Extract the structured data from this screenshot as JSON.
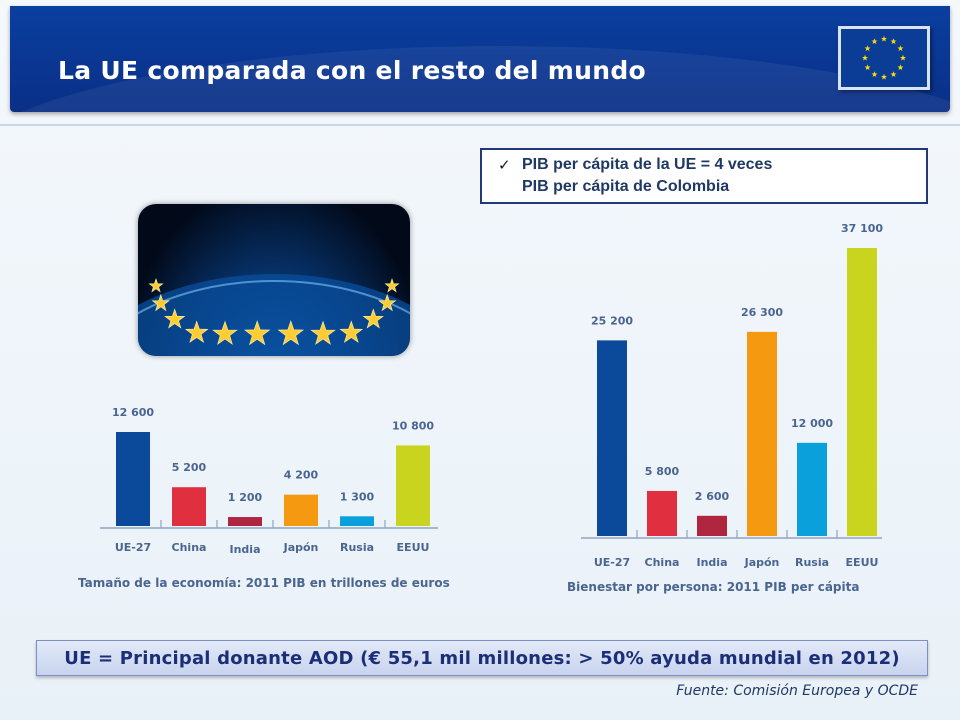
{
  "header": {
    "title": "La UE comparada con el resto del mundo"
  },
  "callout": {
    "check_icon": "check-icon",
    "line1": "PIB per cápita de la UE =  4 veces",
    "line2": "PIB per cápita de Colombia"
  },
  "chart_data": [
    {
      "type": "bar",
      "title": "Tamaño de la economía: 2011 PIB en trillones de euros",
      "categories": [
        "UE-27",
        "China",
        "India",
        "Japón",
        "Rusia",
        "EEUU"
      ],
      "values": [
        12600,
        5200,
        1200,
        4200,
        1300,
        10800
      ],
      "value_labels": [
        "12 600",
        "5 200",
        "1 200",
        "4 200",
        "1 300",
        "10 800"
      ],
      "colors": [
        "#0b4a9a",
        "#e03040",
        "#b0263f",
        "#f59a10",
        "#0aa0dc",
        "#c8d41e"
      ],
      "grid": false,
      "legend": "none"
    },
    {
      "type": "bar",
      "title": "Bienestar por persona: 2011 PIB per cápita",
      "categories": [
        "UE-27",
        "China",
        "India",
        "Japón",
        "Rusia",
        "EEUU"
      ],
      "values": [
        25200,
        5800,
        2600,
        26300,
        12000,
        37100
      ],
      "value_labels": [
        "25 200",
        "5 800",
        "2 600",
        "26 300",
        "12 000",
        "37 100"
      ],
      "colors": [
        "#0b4a9a",
        "#e03040",
        "#b0263f",
        "#f59a10",
        "#0aa0dc",
        "#c8d41e"
      ],
      "grid": false,
      "legend": "none"
    }
  ],
  "footer": {
    "banner": "UE = Principal donante AOD (€ 55,1 mil millones: > 50% ayuda mundial en 2012)",
    "source": "Fuente: Comisión Europea y OCDE"
  },
  "icons": {
    "flag": "eu-flag-icon",
    "photo": "eu-stars-globe-image"
  }
}
